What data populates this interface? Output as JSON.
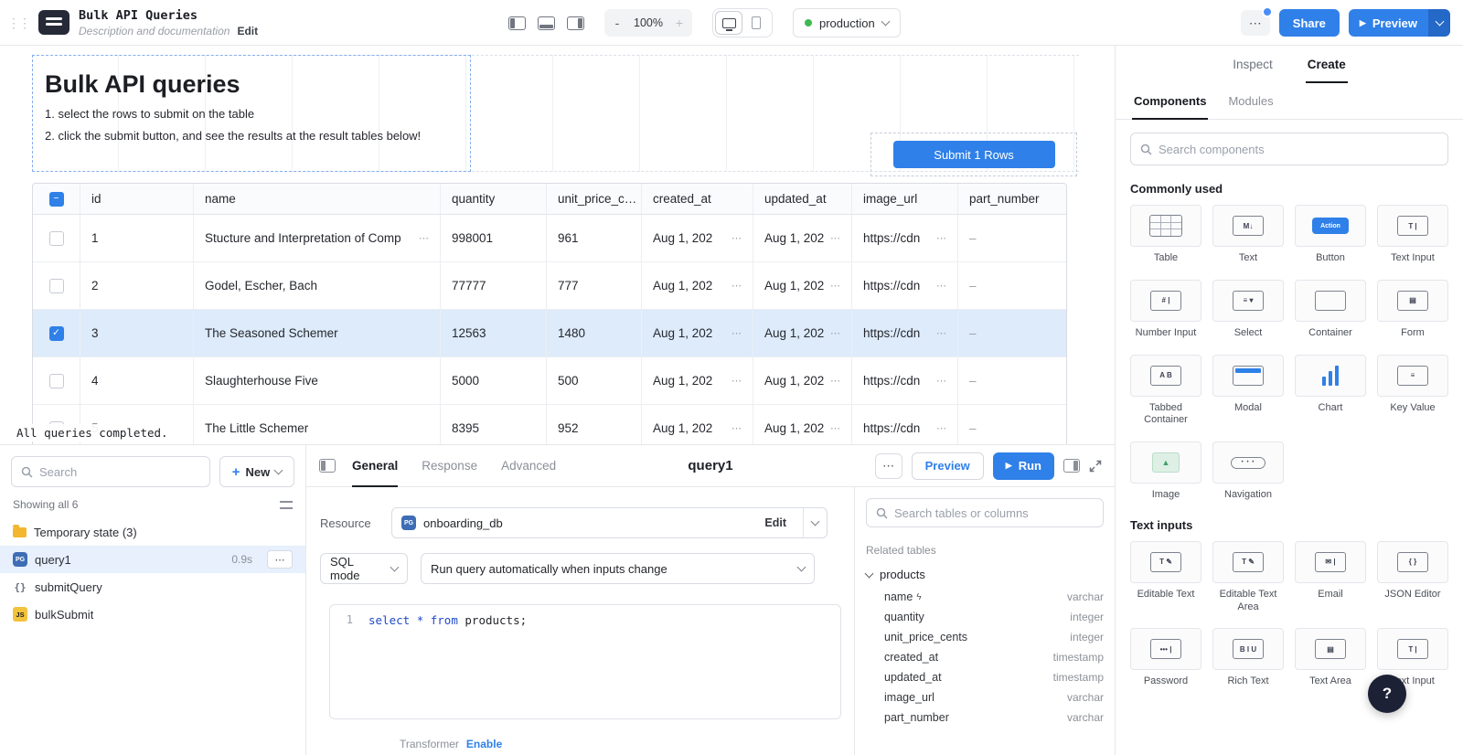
{
  "colors": {
    "accent": "#2f80e8",
    "accent_dark": "#2468c8",
    "row_selected": "#ddebfb",
    "code_keyword": "#2049c8",
    "folder_yellow": "#f3b72f",
    "js_yellow": "#f2c33c",
    "help_bg": "#1d2135",
    "green_dot": "#3fb950"
  },
  "topbar": {
    "title": "Bulk API Queries",
    "subtitle": "Description and documentation",
    "edit": "Edit",
    "zoom_out": "-",
    "zoom": "100%",
    "zoom_in": "+",
    "environment": "production",
    "more": "⋯",
    "share": "Share",
    "preview": "Preview"
  },
  "canvas": {
    "title": "Bulk API queries",
    "line1": "1. select the rows to submit on the table",
    "line2": "2. click the submit button, and see the results at the result tables below!",
    "submit": "Submit 1 Rows",
    "status": "All queries completed.",
    "table": {
      "headers": [
        "id",
        "name",
        "quantity",
        "unit_price_c…",
        "created_at",
        "updated_at",
        "image_url",
        "part_number"
      ],
      "rows": [
        {
          "selected": false,
          "name_more": true,
          "cells": [
            "1",
            "Stucture and Interpretation of Comp",
            "998001",
            "961",
            "Aug 1, 202",
            "Aug 1, 202",
            "https://cdn",
            "–"
          ]
        },
        {
          "selected": false,
          "name_more": false,
          "cells": [
            "2",
            "Godel, Escher, Bach",
            "77777",
            "777",
            "Aug 1, 202",
            "Aug 1, 202",
            "https://cdn",
            "–"
          ]
        },
        {
          "selected": true,
          "name_more": false,
          "cells": [
            "3",
            "The Seasoned Schemer",
            "12563",
            "1480",
            "Aug 1, 202",
            "Aug 1, 202",
            "https://cdn",
            "–"
          ]
        },
        {
          "selected": false,
          "name_more": false,
          "cells": [
            "4",
            "Slaughterhouse Five",
            "5000",
            "500",
            "Aug 1, 202",
            "Aug 1, 202",
            "https://cdn",
            "–"
          ]
        },
        {
          "selected": false,
          "name_more": false,
          "cells": [
            "5",
            "The Little Schemer",
            "8395",
            "952",
            "Aug 1, 202",
            "Aug 1, 202",
            "https://cdn",
            "–"
          ]
        }
      ]
    }
  },
  "query_panel": {
    "search_placeholder": "Search",
    "new_label": "New",
    "showing": "Showing all 6",
    "items": [
      {
        "label": "Temporary state (3)",
        "icon": "folder",
        "selected": false
      },
      {
        "label": "query1",
        "icon": "postgres",
        "selected": true,
        "duration": "0.9s",
        "more": "⋯"
      },
      {
        "label": "submitQuery",
        "icon": "resource",
        "selected": false
      },
      {
        "label": "bulkSubmit",
        "icon": "js",
        "selected": false
      }
    ]
  },
  "editor": {
    "tabs": [
      {
        "label": "General",
        "active": true
      },
      {
        "label": "Response",
        "active": false
      },
      {
        "label": "Advanced",
        "active": false
      }
    ],
    "title": "query1",
    "more": "⋯",
    "preview_label": "Preview",
    "run_label": "Run",
    "resource_label": "Resource",
    "resource_value": "onboarding_db",
    "resource_edit": "Edit",
    "mode_label": "SQL mode",
    "auto_run_label": "Run query automatically when inputs change",
    "code": {
      "line": "1",
      "kw1": "select",
      "star": "*",
      "kw2": "from",
      "rest": "products;"
    },
    "transformer_label": "Transformer",
    "transformer_enable": "Enable"
  },
  "schema": {
    "search_placeholder": "Search tables or columns",
    "related_label": "Related tables",
    "table_name": "products",
    "fields": [
      {
        "name": "name",
        "type": "varchar",
        "flag": true
      },
      {
        "name": "quantity",
        "type": "integer",
        "flag": false
      },
      {
        "name": "unit_price_cents",
        "type": "integer",
        "flag": false
      },
      {
        "name": "created_at",
        "type": "timestamp",
        "flag": false
      },
      {
        "name": "updated_at",
        "type": "timestamp",
        "flag": false
      },
      {
        "name": "image_url",
        "type": "varchar",
        "flag": false
      },
      {
        "name": "part_number",
        "type": "varchar",
        "flag": false
      }
    ]
  },
  "sidebar": {
    "tabs": [
      {
        "label": "Inspect",
        "active": false
      },
      {
        "label": "Create",
        "active": true
      }
    ],
    "subtabs": [
      {
        "label": "Components",
        "active": true
      },
      {
        "label": "Modules",
        "active": false
      }
    ],
    "search_placeholder": "Search components",
    "sections": [
      {
        "label": "Commonly used",
        "items": [
          {
            "label": "Table",
            "icon": "table",
            "glyph": ""
          },
          {
            "label": "Text",
            "icon": "box",
            "glyph": "M↓"
          },
          {
            "label": "Button",
            "icon": "button",
            "glyph": "Action"
          },
          {
            "label": "Text Input",
            "icon": "box",
            "glyph": "T |"
          },
          {
            "label": "Number Input",
            "icon": "box",
            "glyph": "# |"
          },
          {
            "label": "Select",
            "icon": "box",
            "glyph": "≡ ▾"
          },
          {
            "label": "Container",
            "icon": "box",
            "glyph": ""
          },
          {
            "label": "Form",
            "icon": "box",
            "glyph": "▤"
          },
          {
            "label": "Tabbed Container",
            "icon": "box",
            "glyph": "A B"
          },
          {
            "label": "Modal",
            "icon": "modal",
            "glyph": ""
          },
          {
            "label": "Chart",
            "icon": "chart",
            "glyph": ""
          },
          {
            "label": "Key Value",
            "icon": "box",
            "glyph": "≡"
          },
          {
            "label": "Image",
            "icon": "image",
            "glyph": "▲"
          },
          {
            "label": "Navigation",
            "icon": "nav",
            "glyph": "• • •"
          }
        ]
      },
      {
        "label": "Text inputs",
        "items": [
          {
            "label": "Editable Text",
            "icon": "box",
            "glyph": "T ✎"
          },
          {
            "label": "Editable Text Area",
            "icon": "box",
            "glyph": "T ✎"
          },
          {
            "label": "Email",
            "icon": "box",
            "glyph": "✉ |"
          },
          {
            "label": "JSON Editor",
            "icon": "box",
            "glyph": "{ }"
          },
          {
            "label": "Password",
            "icon": "box",
            "glyph": "••• |"
          },
          {
            "label": "Rich Text",
            "icon": "box",
            "glyph": "B I U"
          },
          {
            "label": "Text Area",
            "icon": "box",
            "glyph": "▤"
          },
          {
            "label": "Text Input",
            "icon": "box",
            "glyph": "T |"
          }
        ]
      }
    ],
    "help_label": "?"
  }
}
